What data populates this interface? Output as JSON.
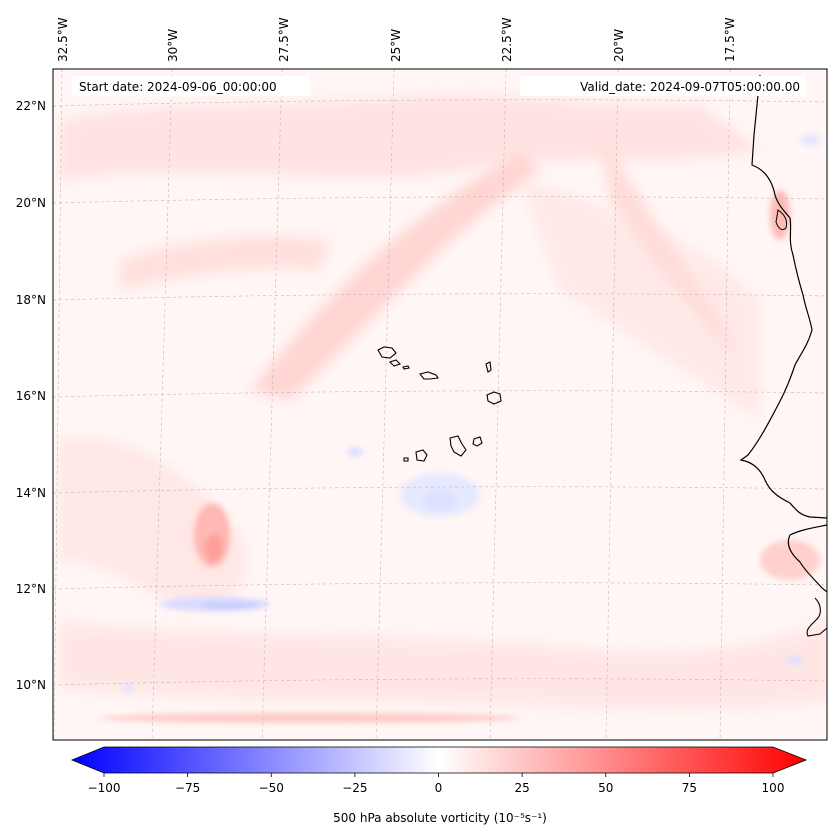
{
  "map": {
    "start_date": "Start date: 2024-09-06_00:00:00",
    "valid_date": "Valid_date: 2024-09-07T05:00:00.00",
    "longitude_labels": [
      "32.5°W",
      "30°W",
      "27.5°W",
      "25°W",
      "22.5°W",
      "20°W",
      "17.5°W"
    ],
    "latitude_labels": [
      "22°N",
      "20°N",
      "18°N",
      "16°N",
      "14°N",
      "12°N",
      "10°N"
    ],
    "gridlines": true,
    "colormap": "bwr"
  },
  "colorbar": {
    "label": "500 hPa absolute vorticity (10⁻⁵s⁻¹)",
    "min": -100,
    "max": 100,
    "ticks": [
      "−100",
      "−75",
      "−50",
      "−25",
      "0",
      "25",
      "50",
      "75",
      "100"
    ],
    "colors": {
      "negative": "#0000ff",
      "zero": "#ffffff",
      "positive": "#ff0000"
    }
  }
}
